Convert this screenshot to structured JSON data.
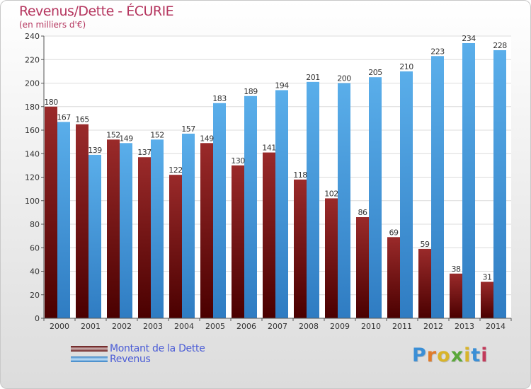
{
  "colors": {
    "dette": "#8a1d1d",
    "dette_dark": "#4a0000",
    "revenus": "#3b8fd6",
    "revenus_light": "#5aaeea",
    "title": "#b5365f",
    "legend_text": "#4a5cd6"
  },
  "logo": {
    "text": "Proxiti"
  },
  "chart_data": {
    "type": "bar",
    "title": "Revenus/Dette - ÉCURIE",
    "subtitle": "(en milliers d'€)",
    "xlabel": "",
    "ylabel": "",
    "ylim": [
      0,
      240
    ],
    "yticks": [
      0,
      20,
      40,
      60,
      80,
      100,
      120,
      140,
      160,
      180,
      200,
      220,
      240
    ],
    "grid": true,
    "legend_position": "bottom-left",
    "categories": [
      "2000",
      "2001",
      "2002",
      "2003",
      "2004",
      "2005",
      "2006",
      "2007",
      "2008",
      "2009",
      "2010",
      "2011",
      "2012",
      "2013",
      "2014"
    ],
    "series": [
      {
        "name": "Montant de la Dette",
        "values": [
          180,
          165,
          152,
          137,
          122,
          149,
          130,
          141,
          118,
          102,
          86,
          69,
          59,
          38,
          31
        ]
      },
      {
        "name": "Revenus",
        "values": [
          167,
          139,
          149,
          152,
          157,
          183,
          189,
          194,
          201,
          200,
          205,
          210,
          223,
          234,
          228
        ]
      }
    ]
  }
}
